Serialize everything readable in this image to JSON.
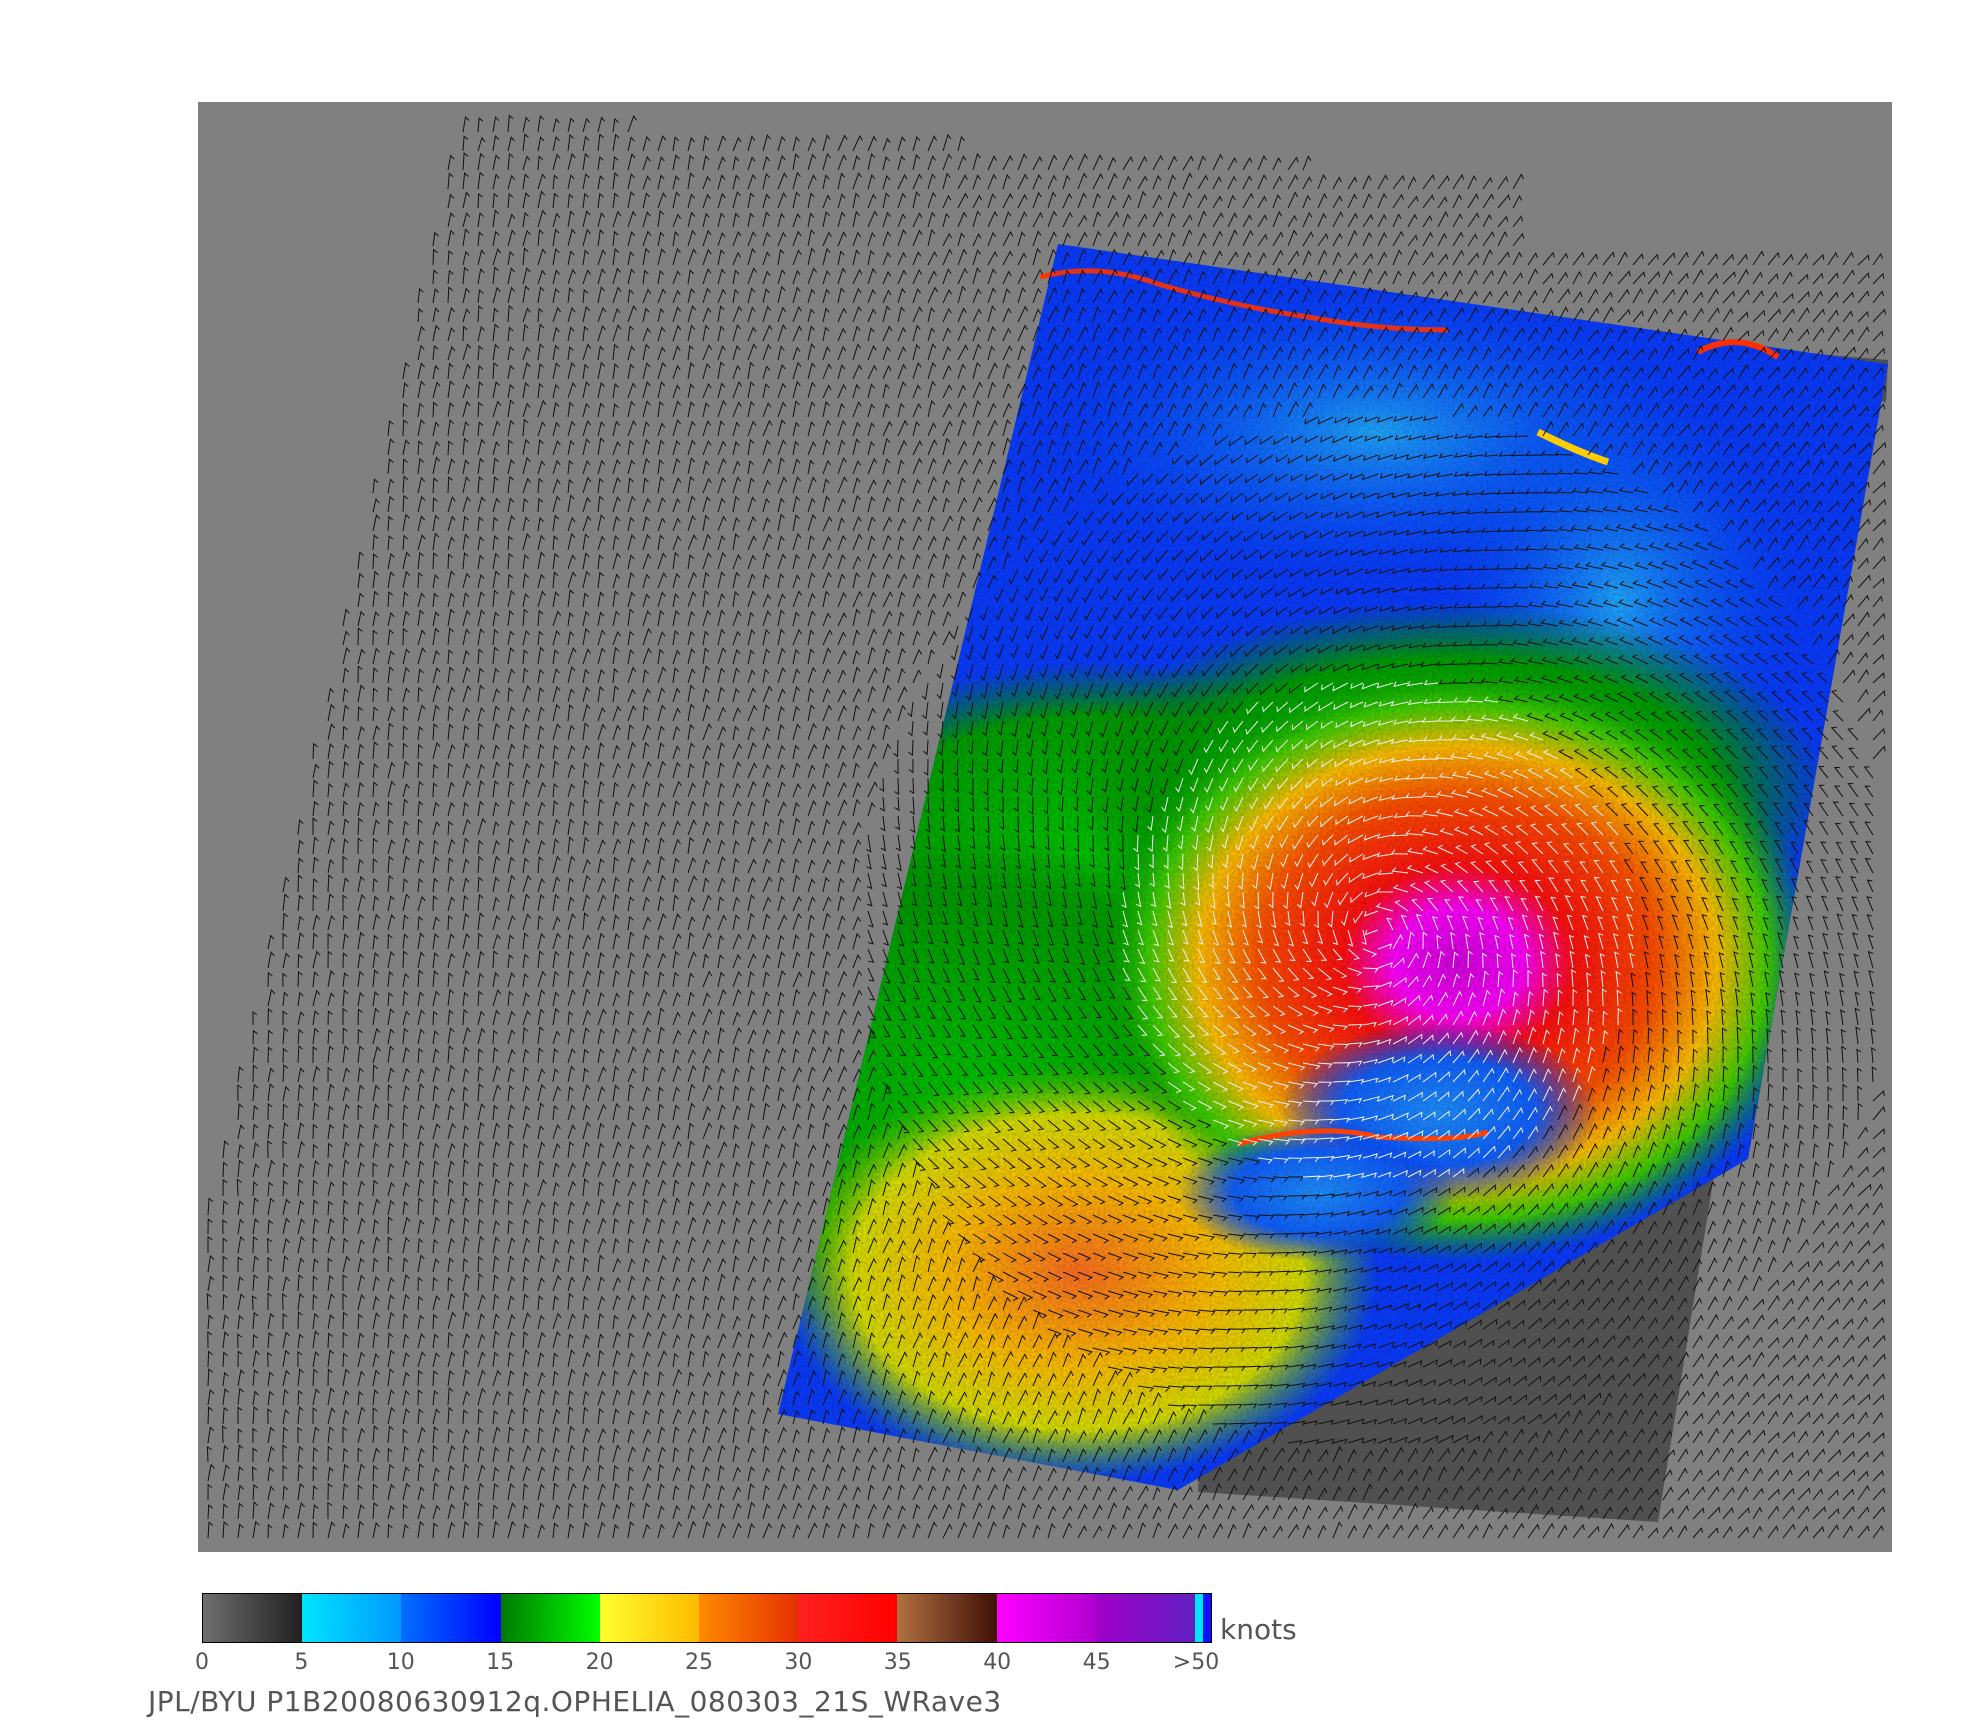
{
  "colors": {
    "panel_bg": "#808080",
    "land_bg": "#505050",
    "vector_on_swath": "#111111",
    "vector_strong": "#f0f0f0"
  },
  "colorbar": {
    "units_label": "knots",
    "ticks": [
      "0",
      "5",
      "10",
      "15",
      "20",
      "25",
      "30",
      "35",
      "40",
      "45",
      ">50"
    ],
    "segments": [
      {
        "from": "#6e6e6e",
        "to": "#202020"
      },
      {
        "from": "#00e4ff",
        "to": "#0098ff"
      },
      {
        "from": "#0070ff",
        "to": "#0000ff"
      },
      {
        "from": "#007a00",
        "to": "#00ff00"
      },
      {
        "from": "#ffff30",
        "to": "#ffbb00"
      },
      {
        "from": "#ff8a00",
        "to": "#e63000"
      },
      {
        "from": "#ff2020",
        "to": "#ff0000"
      },
      {
        "from": "#b07040",
        "to": "#401008"
      },
      {
        "from": "#ff00ff",
        "to": "#b000d0"
      },
      {
        "from": "#a000c8",
        "to": "#6020c0"
      }
    ],
    "end_stripes": [
      "#00e4ff",
      "#1010ff"
    ]
  },
  "credit": "JPL/BYU  P1B20080630912q.OPHELIA_080303_21S_WRave3"
}
